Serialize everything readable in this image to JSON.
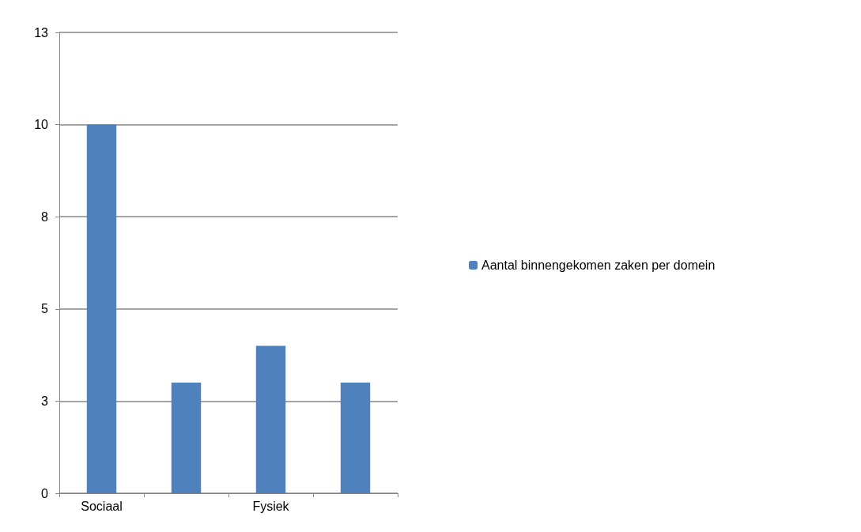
{
  "chart_data": {
    "type": "bar",
    "categories": [
      "Sociaal",
      null,
      "Fysiek",
      null
    ],
    "series": [
      {
        "name": "Aantal binnengekomen zaken per domein",
        "color": "#4f81bd",
        "values": [
          10,
          3,
          4,
          3
        ]
      }
    ],
    "ylim": [
      0,
      12.5
    ],
    "yticks": [
      0,
      {
        "value": 2.5,
        "label": "3"
      },
      5,
      {
        "value": 7.5,
        "label": "8"
      },
      10,
      {
        "value": 12.5,
        "label": "13"
      }
    ],
    "grid": "y",
    "legend": "right"
  }
}
